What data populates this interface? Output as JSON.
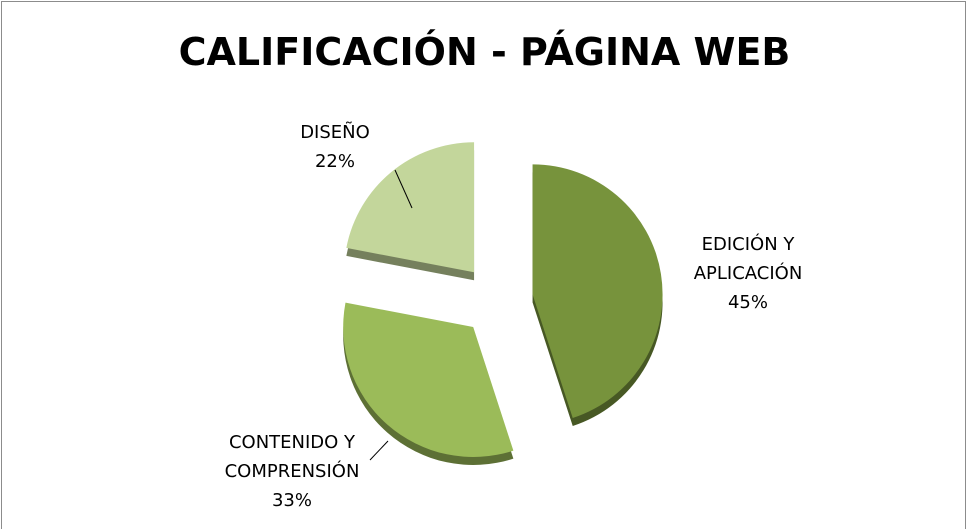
{
  "chart_data": {
    "type": "pie",
    "title": "CALIFICACIÓN - PÁGINA WEB",
    "categories": [
      "EDICIÓN Y APLICACIÓN",
      "CONTENIDO Y COMPRENSIÓN",
      "DISEÑO"
    ],
    "values": [
      45,
      33,
      22
    ],
    "value_labels": [
      "45%",
      "33%",
      "22%"
    ],
    "colors": [
      "#77933c",
      "#9bbb59",
      "#c3d69b"
    ]
  }
}
